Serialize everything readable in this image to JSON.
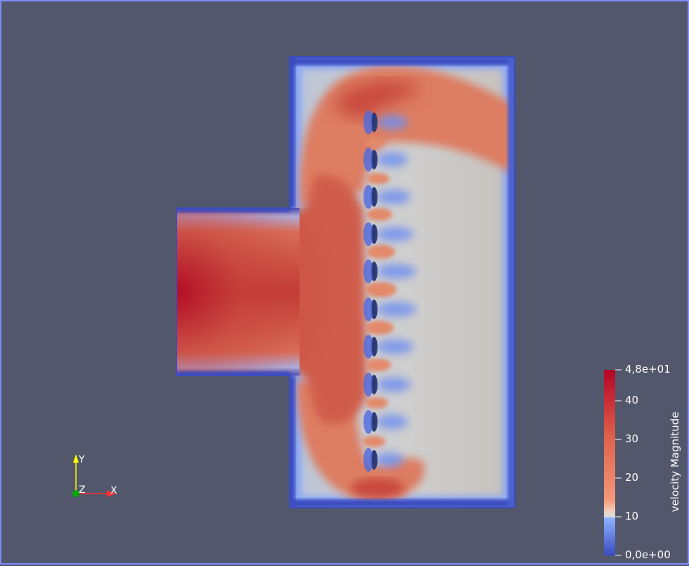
{
  "scalar_bar": {
    "title": "velocity Magnitude",
    "ticks": [
      "4,8e+01",
      "40",
      "30",
      "20",
      "10",
      "0,0e+00"
    ],
    "range": [
      0,
      48
    ],
    "colormap": [
      "#3b4cc0",
      "#8db0fe",
      "#dddddd",
      "#f4987a",
      "#b40426"
    ]
  },
  "axes": {
    "x_label": "X",
    "y_label": "Y",
    "z_label": "Z",
    "x_color": "#ff3030",
    "y_color": "#ffff00",
    "z_color": "#00aa00"
  },
  "colors": {
    "background": "#52576b",
    "border": "#7f8cff"
  }
}
